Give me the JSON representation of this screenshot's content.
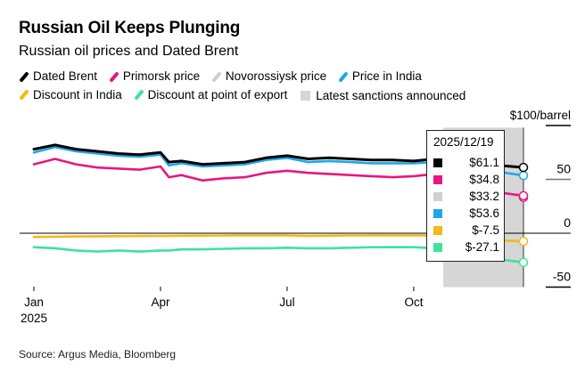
{
  "header": {
    "title": "Russian Oil Keeps Plunging",
    "subtitle": "Russian oil prices and Dated Brent"
  },
  "legend": [
    {
      "label": "Dated Brent",
      "color": "#000000",
      "kind": "line"
    },
    {
      "label": "Primorsk price",
      "color": "#e8177f",
      "kind": "line"
    },
    {
      "label": "Novorossiysk price",
      "color": "#cfcfcf",
      "kind": "line"
    },
    {
      "label": "Price in India",
      "color": "#1ea7e8",
      "kind": "line"
    },
    {
      "label": "Discount in India",
      "color": "#f5b81a",
      "kind": "line"
    },
    {
      "label": "Discount at point of export",
      "color": "#3ee39a",
      "kind": "line"
    },
    {
      "label": "Latest sanctions announced",
      "color": "#d6d6d6",
      "kind": "box"
    }
  ],
  "tooltip": {
    "date": "2025/12/19",
    "rows": [
      {
        "color": "#000000",
        "value": "$61.1"
      },
      {
        "color": "#e8177f",
        "value": "$34.8"
      },
      {
        "color": "#cfcfcf",
        "value": "$33.2"
      },
      {
        "color": "#1ea7e8",
        "value": "$53.6"
      },
      {
        "color": "#f5b81a",
        "value": "$-7.5"
      },
      {
        "color": "#3ee39a",
        "value": "$-27.1"
      }
    ]
  },
  "source": "Source: Argus Media, Bloomberg",
  "chart_data": {
    "type": "line",
    "title": "Russian Oil Keeps Plunging",
    "subtitle": "Russian oil prices and Dated Brent",
    "xlabel": "",
    "ylabel": "$/barrel",
    "ylim": [
      -55,
      100
    ],
    "y_ticks": [
      100,
      50,
      0,
      -50
    ],
    "y_tick_labels": [
      "$100/barrel",
      "50",
      "0",
      "-50"
    ],
    "y_axis_side": "right",
    "x_ticks": [
      "Jan\n2025",
      "Apr",
      "Jul",
      "Oct"
    ],
    "x_tick_months": [
      0,
      3,
      6,
      9
    ],
    "x_range_months": [
      0,
      11.6
    ],
    "grid": false,
    "shaded_region": {
      "label": "Latest sanctions announced",
      "from_month": 9.7,
      "to_month": 11.6,
      "color": "#d6d6d6"
    },
    "x": [
      0,
      0.5,
      1,
      1.5,
      2,
      2.5,
      3,
      3.2,
      3.5,
      4,
      4.5,
      5,
      5.5,
      6,
      6.5,
      7,
      7.5,
      8,
      8.5,
      9,
      9.5,
      10,
      10.5,
      11,
      11.6
    ],
    "series": [
      {
        "name": "Dated Brent",
        "color": "#000000",
        "values": [
          78,
          82,
          78,
          76,
          74,
          73,
          75,
          66,
          67,
          64,
          65,
          66,
          70,
          72,
          69,
          70,
          69,
          68,
          68,
          67,
          69,
          65,
          64,
          63,
          61.1
        ]
      },
      {
        "name": "Primorsk price",
        "color": "#e8177f",
        "values": [
          64,
          69,
          64,
          61,
          60,
          59,
          62,
          52,
          54,
          49,
          51,
          52,
          56,
          58,
          56,
          55,
          54,
          53,
          52,
          53,
          55,
          46,
          42,
          38,
          34.8
        ]
      },
      {
        "name": "Novorossiysk price",
        "color": "#cfcfcf",
        "values": [
          null,
          null,
          null,
          null,
          null,
          null,
          null,
          null,
          null,
          null,
          null,
          null,
          null,
          null,
          null,
          null,
          null,
          null,
          null,
          null,
          null,
          45,
          41,
          37,
          33.2
        ]
      },
      {
        "name": "Price in India",
        "color": "#1ea7e8",
        "values": [
          75,
          80,
          76,
          74,
          72,
          71,
          73,
          63,
          65,
          62,
          63,
          64,
          68,
          70,
          66,
          67,
          66,
          65,
          65,
          65,
          66,
          61,
          59,
          57,
          53.6
        ]
      },
      {
        "name": "Discount in India",
        "color": "#f5b81a",
        "values": [
          -3.5,
          -3.2,
          -3.0,
          -2.8,
          -2.7,
          -2.6,
          -2.5,
          -2.4,
          -2.3,
          -2.2,
          -2.1,
          -2.0,
          -2.0,
          -2.0,
          -2.4,
          -2.2,
          -2.1,
          -2.0,
          -2.0,
          -2.0,
          -2.0,
          -3.5,
          -5.0,
          -6.5,
          -7.5
        ]
      },
      {
        "name": "Discount at point of export",
        "color": "#3ee39a",
        "values": [
          -13,
          -14,
          -16,
          -17,
          -16,
          -17,
          -16,
          -16,
          -15,
          -15,
          -14.5,
          -14,
          -14,
          -13.5,
          -14,
          -14,
          -13.5,
          -13,
          -13,
          -13,
          -14,
          -18,
          -21,
          -24,
          -27.1
        ]
      }
    ],
    "end_date": "2025/12/19"
  }
}
